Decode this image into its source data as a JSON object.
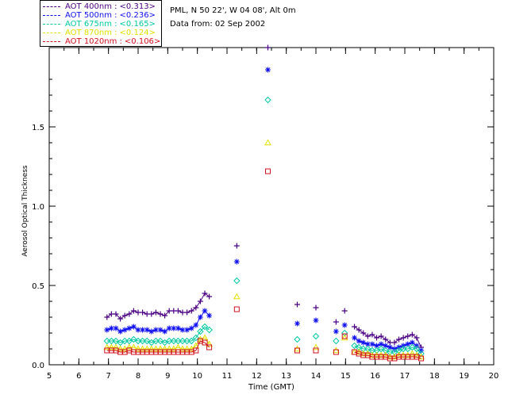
{
  "legend": {
    "items": [
      {
        "label": "AOT  400nm :",
        "value": "<0.313>",
        "color": "#4b0082"
      },
      {
        "label": "AOT  500nm :",
        "value": "<0.236>",
        "color": "#1010ee"
      },
      {
        "label": "AOT  675nm :",
        "value": "<0.165>",
        "color": "#00c8a0"
      },
      {
        "label": "AOT  870nm :",
        "value": "<0.124>",
        "color": "#e0e000"
      },
      {
        "label": "AOT 1020nm :",
        "value": "<0.106>",
        "color": "#d01020"
      }
    ]
  },
  "info": {
    "site": "PML, N 50 22', W 04 08', Alt 0m",
    "date": "Data from: 02 Sep 2002"
  },
  "chart_data": {
    "type": "scatter",
    "xlabel": "Time (GMT)",
    "ylabel": "Aerosol Optical Thickness",
    "xlim": [
      5,
      20
    ],
    "ylim": [
      0,
      2.0
    ],
    "xticks": [
      5,
      6,
      7,
      8,
      9,
      10,
      11,
      12,
      13,
      14,
      15,
      16,
      17,
      18,
      19,
      20
    ],
    "yticks": [
      0.0,
      0.5,
      1.0,
      1.5
    ],
    "ytick_labels": [
      "0.0",
      "0.5",
      "1.0",
      "1.5"
    ],
    "series": [
      {
        "name": "AOT 400nm",
        "marker": "plus",
        "color": "#4b0082",
        "line_x": [
          6.95,
          7.1,
          7.25,
          7.4,
          7.55,
          7.7,
          7.85,
          8.0,
          8.15,
          8.3,
          8.45,
          8.6,
          8.75,
          8.9,
          9.05,
          9.2,
          9.35,
          9.5,
          9.65,
          9.8,
          9.95,
          10.1,
          10.25,
          10.4
        ],
        "line_y": [
          0.3,
          0.32,
          0.32,
          0.29,
          0.31,
          0.32,
          0.34,
          0.33,
          0.33,
          0.32,
          0.32,
          0.33,
          0.32,
          0.31,
          0.34,
          0.34,
          0.34,
          0.33,
          0.33,
          0.34,
          0.36,
          0.4,
          0.45,
          0.43
        ],
        "x": [
          11.33,
          12.38,
          13.37,
          14.0,
          14.68,
          14.97,
          15.3,
          15.45,
          15.6,
          15.75,
          15.9,
          16.05,
          16.2,
          16.35,
          16.5,
          16.65,
          16.8,
          16.95,
          17.1,
          17.25,
          17.4,
          17.55
        ],
        "y": [
          0.75,
          2.0,
          0.38,
          0.36,
          0.27,
          0.34,
          0.24,
          0.22,
          0.2,
          0.18,
          0.19,
          0.17,
          0.18,
          0.16,
          0.14,
          0.14,
          0.16,
          0.17,
          0.18,
          0.19,
          0.17,
          0.11
        ]
      },
      {
        "name": "AOT 500nm",
        "marker": "asterisk",
        "color": "#1010ee",
        "line_x": [
          6.95,
          7.1,
          7.25,
          7.4,
          7.55,
          7.7,
          7.85,
          8.0,
          8.15,
          8.3,
          8.45,
          8.6,
          8.75,
          8.9,
          9.05,
          9.2,
          9.35,
          9.5,
          9.65,
          9.8,
          9.95,
          10.1,
          10.25,
          10.4
        ],
        "line_y": [
          0.22,
          0.23,
          0.23,
          0.21,
          0.22,
          0.23,
          0.24,
          0.22,
          0.22,
          0.22,
          0.21,
          0.22,
          0.22,
          0.21,
          0.23,
          0.23,
          0.23,
          0.22,
          0.22,
          0.23,
          0.25,
          0.3,
          0.34,
          0.31
        ],
        "x": [
          11.33,
          12.38,
          13.37,
          14.0,
          14.68,
          14.97,
          15.3,
          15.45,
          15.6,
          15.75,
          15.9,
          16.05,
          16.2,
          16.35,
          16.5,
          16.65,
          16.8,
          16.95,
          17.1,
          17.25,
          17.4,
          17.55
        ],
        "y": [
          0.65,
          1.86,
          0.26,
          0.28,
          0.21,
          0.25,
          0.17,
          0.15,
          0.14,
          0.13,
          0.13,
          0.12,
          0.13,
          0.12,
          0.11,
          0.1,
          0.11,
          0.12,
          0.13,
          0.14,
          0.12,
          0.09
        ]
      },
      {
        "name": "AOT 675nm",
        "marker": "diamond",
        "color": "#00c8a0",
        "line_x": [
          6.95,
          7.1,
          7.25,
          7.4,
          7.55,
          7.7,
          7.85,
          8.0,
          8.15,
          8.3,
          8.45,
          8.6,
          8.75,
          8.9,
          9.05,
          9.2,
          9.35,
          9.5,
          9.65,
          9.8,
          9.95,
          10.1,
          10.25,
          10.4
        ],
        "line_y": [
          0.15,
          0.15,
          0.15,
          0.14,
          0.15,
          0.15,
          0.16,
          0.15,
          0.15,
          0.15,
          0.14,
          0.15,
          0.15,
          0.14,
          0.15,
          0.15,
          0.15,
          0.15,
          0.15,
          0.15,
          0.17,
          0.21,
          0.24,
          0.22
        ],
        "x": [
          11.33,
          12.38,
          13.37,
          14.0,
          14.68,
          14.97,
          15.3,
          15.45,
          15.6,
          15.75,
          15.9,
          16.05,
          16.2,
          16.35,
          16.5,
          16.65,
          16.8,
          16.95,
          17.1,
          17.25,
          17.4,
          17.55
        ],
        "y": [
          0.53,
          1.67,
          0.16,
          0.18,
          0.15,
          0.2,
          0.12,
          0.11,
          0.1,
          0.1,
          0.09,
          0.09,
          0.1,
          0.09,
          0.08,
          0.08,
          0.09,
          0.1,
          0.1,
          0.11,
          0.1,
          0.07
        ]
      },
      {
        "name": "AOT 870nm",
        "marker": "triangle",
        "color": "#e0e000",
        "line_x": [
          6.95,
          7.1,
          7.25,
          7.4,
          7.55,
          7.7,
          7.85,
          8.0,
          8.15,
          8.3,
          8.45,
          8.6,
          8.75,
          8.9,
          9.05,
          9.2,
          9.35,
          9.5,
          9.65,
          9.8,
          9.95,
          10.1,
          10.25,
          10.4
        ],
        "line_y": [
          0.11,
          0.11,
          0.11,
          0.1,
          0.1,
          0.11,
          0.11,
          0.1,
          0.1,
          0.1,
          0.1,
          0.1,
          0.1,
          0.1,
          0.1,
          0.1,
          0.11,
          0.1,
          0.1,
          0.1,
          0.12,
          0.16,
          0.17,
          0.13
        ],
        "x": [
          11.33,
          12.38,
          13.37,
          14.0,
          14.68,
          14.97,
          15.3,
          15.45,
          15.6,
          15.75,
          15.9,
          16.05,
          16.2,
          16.35,
          16.5,
          16.65,
          16.8,
          16.95,
          17.1,
          17.25,
          17.4,
          17.55
        ],
        "y": [
          0.43,
          1.4,
          0.1,
          0.11,
          0.09,
          0.17,
          0.08,
          0.08,
          0.07,
          0.07,
          0.06,
          0.06,
          0.06,
          0.06,
          0.05,
          0.05,
          0.06,
          0.06,
          0.06,
          0.07,
          0.06,
          0.05
        ]
      },
      {
        "name": "AOT 1020nm",
        "marker": "square",
        "color": "#d01020",
        "line_x": [
          6.95,
          7.1,
          7.25,
          7.4,
          7.55,
          7.7,
          7.85,
          8.0,
          8.15,
          8.3,
          8.45,
          8.6,
          8.75,
          8.9,
          9.05,
          9.2,
          9.35,
          9.5,
          9.65,
          9.8,
          9.95,
          10.1,
          10.25,
          10.4
        ],
        "line_y": [
          0.09,
          0.09,
          0.09,
          0.08,
          0.08,
          0.09,
          0.08,
          0.08,
          0.08,
          0.08,
          0.08,
          0.08,
          0.08,
          0.08,
          0.08,
          0.08,
          0.08,
          0.08,
          0.08,
          0.08,
          0.09,
          0.15,
          0.14,
          0.11
        ],
        "x": [
          11.33,
          12.38,
          13.37,
          14.0,
          14.68,
          14.97,
          15.3,
          15.45,
          15.6,
          15.75,
          15.9,
          16.05,
          16.2,
          16.35,
          16.5,
          16.65,
          16.8,
          16.95,
          17.1,
          17.25,
          17.4,
          17.55
        ],
        "y": [
          0.35,
          1.22,
          0.09,
          0.09,
          0.08,
          0.18,
          0.08,
          0.07,
          0.06,
          0.06,
          0.05,
          0.05,
          0.05,
          0.05,
          0.04,
          0.04,
          0.05,
          0.05,
          0.05,
          0.05,
          0.05,
          0.04
        ]
      }
    ]
  }
}
